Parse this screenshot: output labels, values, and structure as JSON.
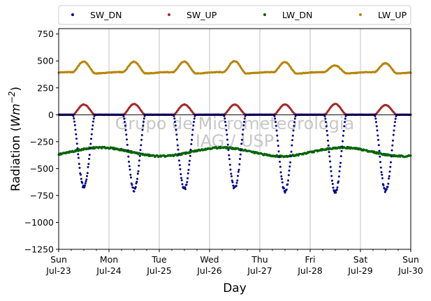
{
  "chart_data": {
    "type": "scatter",
    "title": "",
    "xlabel": "Day",
    "ylabel_main": "Radiation (",
    "ylabel_unit_base": "Wm",
    "ylabel_unit_exp": "−2",
    "ylabel_close": ")",
    "xlim": [
      0,
      7
    ],
    "ylim": [
      -1250,
      800
    ],
    "yticks": [
      -1250,
      -1000,
      -750,
      -500,
      -250,
      0,
      250,
      500,
      750
    ],
    "ytick_labels": [
      "−1250",
      "−1000",
      "−750",
      "−500",
      "−250",
      "0",
      "250",
      "500",
      "750"
    ],
    "xticks": [
      0,
      1,
      2,
      3,
      4,
      5,
      6,
      7
    ],
    "xtick_days": [
      "Sun",
      "Mon",
      "Tue",
      "Wed",
      "Thu",
      "Fri",
      "Sat",
      "Sun"
    ],
    "xtick_dates": [
      "Jul-23",
      "Jul-24",
      "Jul-25",
      "Jul-26",
      "Jul-27",
      "Jul-28",
      "Jul-29",
      "Jul-30"
    ],
    "grid": "vertical",
    "zero_line": true,
    "legend_position": "top, above plot, 4 columns",
    "watermark": [
      "Grupo de Micrometeorologia",
      "IAG / USP"
    ],
    "series": [
      {
        "name": "SW_DN",
        "color": "#00008b",
        "daily_min": [
          -670,
          -700,
          -690,
          -680,
          -710,
          -720,
          -710
        ]
      },
      {
        "name": "SW_UP",
        "color": "#a52a2a",
        "daily_max": [
          95,
          100,
          95,
          95,
          95,
          100,
          90
        ]
      },
      {
        "name": "LW_DN",
        "color": "#006400",
        "range": [
          -385,
          -305
        ]
      },
      {
        "name": "LW_UP",
        "color": "#b8860b",
        "night_level": 390,
        "daily_max": [
          495,
          495,
          495,
          500,
          490,
          460,
          480
        ]
      }
    ]
  }
}
